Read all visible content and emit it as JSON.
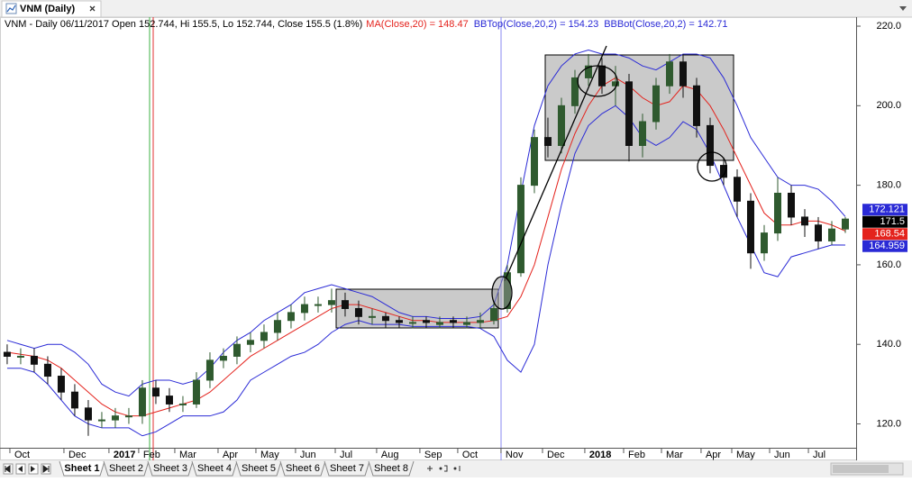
{
  "window": {
    "tab": "VNM (Daily)"
  },
  "sheets": [
    "Sheet 1",
    "Sheet 2",
    "Sheet 3",
    "Sheet 4",
    "Sheet 5",
    "Sheet 6",
    "Sheet 7",
    "Sheet 8"
  ],
  "chart_data": {
    "type": "candlestick",
    "header": "VNM - Daily 06/11/2017 Open 152.744, Hi 155.5, Lo 152.744, Close 155.5 (1.8%)",
    "ohlc": {
      "up_color": "#2f5a2f",
      "down_color": "#111111",
      "last_label": "171.5",
      "label_color": "#000000",
      "open": [
        138,
        137,
        137,
        135,
        132,
        128,
        124,
        121,
        121,
        122,
        122,
        129,
        127,
        125,
        125,
        131,
        136,
        137,
        140,
        141,
        143,
        146,
        148,
        150,
        150,
        151,
        149,
        147,
        147,
        146,
        145.5,
        146,
        145,
        146,
        145,
        145.5,
        146,
        149,
        158,
        180,
        192,
        190,
        200,
        207,
        210,
        205,
        206,
        190,
        196,
        205,
        211,
        205,
        195,
        185,
        182,
        176,
        163,
        168,
        178,
        172,
        170,
        166,
        169
      ],
      "high": [
        140,
        139,
        139,
        137,
        134,
        130,
        126,
        123,
        124,
        124,
        131,
        131,
        129,
        127,
        133,
        138,
        139,
        142,
        143,
        145,
        148,
        150,
        152,
        152,
        154,
        153,
        151,
        149,
        148,
        147,
        147,
        147,
        147,
        147,
        147,
        148,
        151,
        160,
        182,
        194,
        197,
        202,
        209,
        213,
        212,
        210,
        208,
        198,
        207,
        213,
        213,
        207,
        197,
        187,
        184,
        178,
        170,
        182,
        180,
        174,
        172,
        171,
        172
      ],
      "low": [
        135,
        135,
        133,
        130,
        126,
        122,
        117,
        119,
        119,
        120,
        120,
        125,
        123,
        123,
        124,
        129,
        134,
        135,
        138,
        139,
        141,
        144,
        146,
        148,
        148,
        147,
        145,
        145,
        144,
        144,
        144,
        144,
        144,
        144,
        144,
        144,
        145,
        148,
        157,
        178,
        187,
        188,
        198,
        205,
        203,
        200,
        186,
        187,
        194,
        203,
        202,
        192,
        183,
        180,
        172,
        159,
        161,
        166,
        170,
        167,
        164,
        165,
        168
      ],
      "close": [
        137,
        137,
        135,
        132,
        128,
        124,
        121,
        121,
        122,
        122,
        129,
        127,
        125,
        125,
        131,
        136,
        137,
        140,
        141,
        143,
        146,
        148,
        150,
        150,
        151,
        149,
        147,
        147,
        146,
        145.5,
        145.5,
        145.5,
        145.5,
        145.5,
        145.5,
        146,
        149,
        158,
        180,
        192,
        190,
        200,
        207,
        210,
        205,
        206,
        190,
        196,
        205,
        211,
        205,
        195,
        185,
        182,
        176,
        163,
        168,
        178,
        172,
        170,
        166,
        169,
        171.5
      ]
    },
    "series": [
      {
        "name": "MA(Close,20) = 148.47",
        "color": "#e4231d",
        "last_label": "168.54",
        "values": [
          138,
          137.5,
          137,
          136,
          134,
          131,
          128,
          125,
          123,
          122,
          122,
          123,
          124,
          125,
          126,
          128,
          131,
          134,
          137,
          139,
          141,
          143,
          145,
          147,
          149,
          150,
          150,
          149,
          148,
          147,
          146,
          146,
          145.5,
          145.5,
          145.5,
          145.5,
          146,
          147,
          152,
          160,
          172,
          184,
          193,
          200,
          205,
          207,
          205,
          202,
          200,
          201,
          205,
          204,
          200,
          194,
          187,
          180,
          173,
          170,
          170,
          171,
          171,
          170,
          168.5
        ]
      },
      {
        "name": "BBTop(Close,20,2) = 154.23",
        "color": "#2a2ad6",
        "last_label": "172.121",
        "values": [
          141,
          140,
          139,
          140,
          140,
          138,
          135,
          130,
          128,
          127,
          130,
          131,
          131,
          130,
          131,
          134,
          138,
          141,
          143,
          146,
          148,
          150,
          153,
          154,
          155,
          154,
          153,
          152,
          150,
          148,
          147,
          147,
          146.5,
          146.5,
          146.5,
          147,
          150,
          160,
          178,
          195,
          205,
          210,
          213,
          214,
          213,
          213,
          212,
          210,
          209,
          211,
          213,
          213,
          212,
          207,
          200,
          192,
          187,
          182,
          180,
          180,
          179,
          176,
          172.121
        ]
      },
      {
        "name": "BBBot(Close,20,2) = 142.71",
        "color": "#2a2ad6",
        "last_label": "164.959",
        "values": [
          134,
          134,
          133,
          130,
          126,
          122,
          120,
          119,
          119,
          119,
          117,
          118,
          120,
          122,
          122,
          122,
          123,
          126,
          131,
          133,
          135,
          137,
          138,
          140,
          143,
          145,
          146,
          145,
          145,
          145,
          144.5,
          144.5,
          144.5,
          144.5,
          144.5,
          144,
          142,
          136,
          133,
          140,
          160,
          175,
          188,
          195,
          198,
          200,
          197,
          192,
          190,
          192,
          196,
          194,
          188,
          180,
          172,
          165,
          158,
          157,
          162,
          163,
          164,
          165,
          164.959
        ]
      }
    ],
    "xlim": [
      -0.53,
      62.8
    ],
    "xticks": [
      {
        "value": 0.2,
        "label": "Oct"
      },
      {
        "value": 4.2,
        "label": "Dec"
      },
      {
        "value": 7.53,
        "label": "2017"
      },
      {
        "value": 9.73,
        "label": "Feb"
      },
      {
        "value": 12.4,
        "label": "Mar"
      },
      {
        "value": 15.6,
        "label": "Apr"
      },
      {
        "value": 18.4,
        "label": "May"
      },
      {
        "value": 21.33,
        "label": "Jun"
      },
      {
        "value": 24.27,
        "label": "Jul"
      },
      {
        "value": 27.33,
        "label": "Aug"
      },
      {
        "value": 30.53,
        "label": "Sep"
      },
      {
        "value": 33.33,
        "label": "Oct"
      },
      {
        "value": 36.53,
        "label": "Nov"
      },
      {
        "value": 39.6,
        "label": "Dec"
      },
      {
        "value": 42.73,
        "label": "2018"
      },
      {
        "value": 45.6,
        "label": "Feb"
      },
      {
        "value": 48.4,
        "label": "Mar"
      },
      {
        "value": 51.33,
        "label": "Apr"
      },
      {
        "value": 53.6,
        "label": "May"
      },
      {
        "value": 56.4,
        "label": "Jun"
      },
      {
        "value": 59.27,
        "label": "Jul"
      }
    ],
    "ylim": [
      114,
      222.5
    ],
    "yticks": [
      {
        "value": 120,
        "label": "120.0"
      },
      {
        "value": 140,
        "label": "140.0"
      },
      {
        "value": 160,
        "label": "160.0"
      },
      {
        "value": 180,
        "label": "180.0"
      },
      {
        "value": 200,
        "label": "200.0"
      },
      {
        "value": 220,
        "label": "220.0"
      }
    ]
  }
}
